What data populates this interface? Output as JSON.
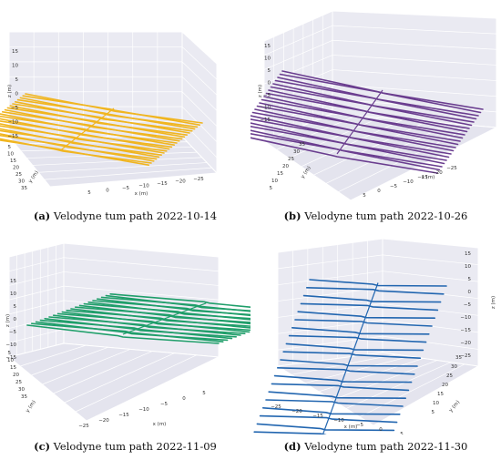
{
  "figure": {
    "panels": [
      {
        "id": "a",
        "caption_letter": "(a)",
        "caption_text": " Velodyne tum path 2022-10-14",
        "color": "#f0b520",
        "chart_data": {
          "type": "line3d",
          "axis_labels": {
            "x": "x (m)",
            "y": "y (m)",
            "z": "z (m)"
          },
          "x_ticks": [
            "5",
            "0",
            "−5",
            "−10",
            "−15",
            "−20",
            "−25"
          ],
          "y_ticks": [
            "35",
            "30",
            "25",
            "20",
            "15",
            "10",
            "5"
          ],
          "z_ticks": [
            "15",
            "10",
            "5",
            "0",
            "−5",
            "−10",
            "−15"
          ],
          "x_range": [
            -25,
            5
          ],
          "y_range": [
            5,
            35
          ],
          "z_range": [
            -15,
            15
          ],
          "description_series": "parallel lawnmower passes at z≈0",
          "line_count": 22
        }
      },
      {
        "id": "b",
        "caption_letter": "(b)",
        "caption_text": " Velodyne tum path 2022-10-26",
        "color": "#6a3d8f",
        "chart_data": {
          "type": "line3d",
          "axis_labels": {
            "x": "x (m)",
            "y": "y (m)",
            "z": "z (m)"
          },
          "x_ticks": [
            "5",
            "0",
            "−5",
            "−10",
            "−15",
            "−20",
            "−25"
          ],
          "y_ticks": [
            "35",
            "30",
            "25",
            "20",
            "15",
            "10",
            "5"
          ],
          "z_ticks": [
            "15",
            "10",
            "5",
            "0",
            "−5",
            "−10",
            "−15"
          ],
          "x_range": [
            -25,
            5
          ],
          "y_range": [
            5,
            35
          ],
          "z_range": [
            -15,
            15
          ],
          "line_count": 21
        }
      },
      {
        "id": "c",
        "caption_letter": "(c)",
        "caption_text": " Velodyne tum path 2022-11-09",
        "color": "#1f9e6a",
        "chart_data": {
          "type": "line3d",
          "axis_labels": {
            "x": "x (m)",
            "y": "y (m)",
            "z": "z (m)"
          },
          "x_ticks": [
            "−25",
            "−20",
            "−15",
            "−10",
            "−5",
            "0",
            "5"
          ],
          "y_ticks": [
            "35",
            "30",
            "25",
            "20",
            "15",
            "10",
            "5"
          ],
          "z_ticks": [
            "15",
            "10",
            "5",
            "0",
            "−5",
            "−10",
            "−15"
          ],
          "x_range": [
            -25,
            5
          ],
          "y_range": [
            5,
            35
          ],
          "z_range": [
            -15,
            15
          ],
          "line_count": 20
        }
      },
      {
        "id": "d",
        "caption_letter": "(d)",
        "caption_text": " Velodyne tum path 2022-11-30",
        "color": "#2266b0",
        "chart_data": {
          "type": "line3d",
          "axis_labels": {
            "x": "x (m)",
            "y": "y (m)",
            "z": "z (m)"
          },
          "x_ticks": [
            "−25",
            "−20",
            "−15",
            "−10",
            "−5",
            "0",
            "5"
          ],
          "y_ticks": [
            "5",
            "10",
            "15",
            "20",
            "25",
            "30",
            "35"
          ],
          "z_ticks": [
            "15",
            "10",
            "5",
            "0",
            "−5",
            "−10",
            "−15",
            "−20",
            "−25"
          ],
          "x_range": [
            -25,
            5
          ],
          "y_range": [
            5,
            35
          ],
          "z_range": [
            -25,
            15
          ],
          "line_count": 22
        }
      }
    ]
  }
}
